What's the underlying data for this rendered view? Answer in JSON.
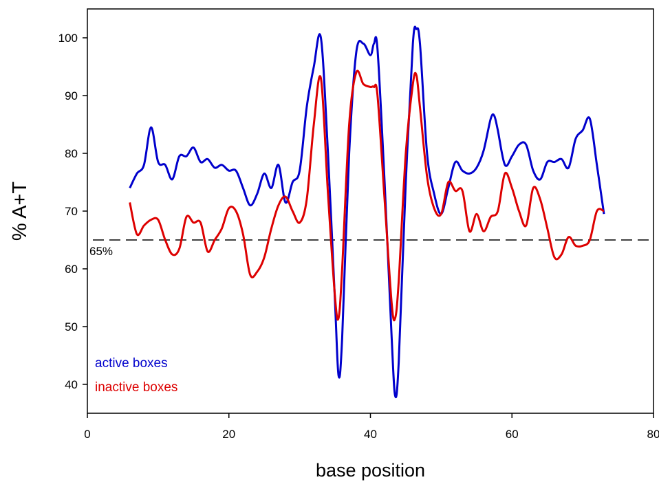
{
  "chart_data": {
    "type": "line",
    "xlabel": "base position",
    "ylabel": "% A+T",
    "xlim": [
      0,
      80
    ],
    "ylim": [
      35,
      105
    ],
    "xticks": [
      0,
      20,
      40,
      60,
      80
    ],
    "yticks": [
      40,
      50,
      60,
      70,
      80,
      90,
      100
    ],
    "grid": false,
    "legend_position": "bottom-left",
    "reference_line": {
      "y": 65,
      "label": "65%",
      "style": "dashed",
      "color": "#000000"
    },
    "series": [
      {
        "name": "active boxes",
        "color": "#0000cc",
        "x": [
          6,
          7,
          8,
          9,
          10,
          11,
          12,
          13,
          14,
          15,
          16,
          17,
          18,
          19,
          20,
          21,
          22,
          23,
          24,
          25,
          26,
          27,
          28,
          29,
          30,
          31,
          32,
          33,
          34,
          35,
          35.5,
          36,
          37,
          38,
          39,
          40,
          40.5,
          41,
          42,
          43,
          43.5,
          44,
          45,
          46,
          46.5,
          47,
          48,
          49,
          50,
          51,
          52,
          53,
          54,
          55,
          56,
          57,
          57.5,
          58,
          59,
          60,
          61,
          62,
          63,
          64,
          65,
          66,
          67,
          68,
          69,
          70,
          71,
          72,
          73
        ],
        "values": [
          74,
          76.5,
          78,
          84.5,
          78.5,
          78,
          75.5,
          79.5,
          79.5,
          81,
          78.5,
          79,
          77.5,
          78,
          77,
          77,
          74,
          71,
          73,
          76.5,
          74,
          78,
          71.5,
          75,
          77,
          88,
          95,
          100,
          80,
          54,
          41.5,
          48,
          80,
          97.5,
          99,
          97,
          99,
          98,
          75,
          48,
          38,
          44,
          75,
          99,
          101.5,
          99,
          80,
          73,
          69.5,
          74,
          78.5,
          77,
          76.5,
          77.5,
          80.5,
          86,
          86.5,
          84,
          78,
          79.5,
          81.5,
          81.5,
          77,
          75.5,
          78.5,
          78.5,
          79,
          77.5,
          82.5,
          84,
          86,
          78,
          69.5
        ]
      },
      {
        "name": "inactive boxes",
        "color": "#dd0000",
        "x": [
          6,
          7,
          8,
          9,
          10,
          11,
          12,
          13,
          14,
          15,
          16,
          17,
          18,
          19,
          20,
          21,
          22,
          23,
          24,
          25,
          26,
          27,
          28,
          29,
          30,
          31,
          32,
          33,
          34,
          35,
          35.5,
          36,
          37,
          38,
          39,
          40,
          40.5,
          41,
          42,
          43,
          43.5,
          44,
          45,
          46,
          46.5,
          47,
          48,
          49,
          50,
          51,
          52,
          53,
          54,
          55,
          56,
          57,
          58,
          59,
          60,
          61,
          62,
          63,
          64,
          65,
          66,
          67,
          68,
          69,
          70,
          71,
          72,
          73
        ],
        "values": [
          71.5,
          66,
          67.5,
          68.5,
          68.5,
          65,
          62.5,
          63.5,
          69,
          68,
          68,
          63,
          65,
          67,
          70.5,
          70,
          66,
          59,
          59.5,
          62,
          67,
          71,
          72.5,
          70,
          68,
          72,
          85,
          93,
          73,
          55,
          51.5,
          60,
          85,
          94,
          92,
          91.5,
          91.5,
          90,
          72,
          54,
          51.5,
          58,
          80,
          92,
          93.5,
          88,
          76,
          70.5,
          69.5,
          75,
          73.5,
          73.5,
          66.5,
          69.5,
          66.5,
          69,
          70,
          76.5,
          74,
          70,
          67.5,
          74,
          72,
          67,
          62,
          62.5,
          65.5,
          64,
          64,
          65,
          70,
          70
        ]
      }
    ]
  }
}
